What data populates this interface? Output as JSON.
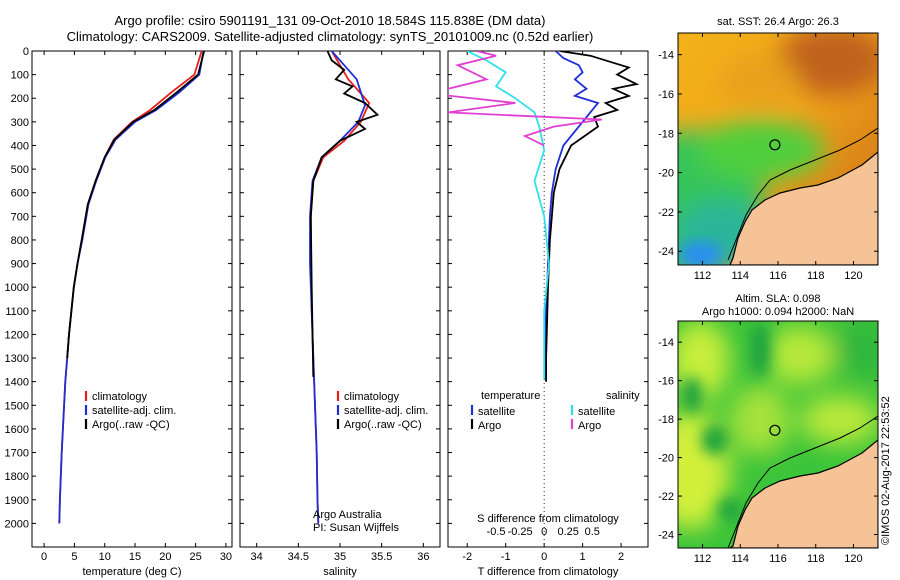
{
  "title": {
    "line1": "Argo profile: csiro 5901191_131 09-Oct-2010 18.584S 115.838E (DM data)",
    "line2": "Climatology: CARS2009. Satellite-adjusted climatology: synTS_20101009.nc (0.52d earlier)"
  },
  "colors": {
    "climatology": "#e8201a",
    "satellite": "#1f2fd6",
    "argo": "#000000",
    "argo_salinity": "#e040d0",
    "sat_salinity": "#30e0e8",
    "land": "#f5c396"
  },
  "chart_data": [
    {
      "type": "line",
      "panel": "temperature",
      "xlabel": "temperature (deg C)",
      "ylabel": "",
      "xlim": [
        -2,
        31
      ],
      "ylim": [
        2100,
        0
      ],
      "xticks": [
        0,
        5,
        10,
        15,
        20,
        25,
        30
      ],
      "yticks": [
        0,
        100,
        200,
        300,
        400,
        500,
        600,
        700,
        800,
        900,
        1000,
        1100,
        1200,
        1300,
        1400,
        1500,
        1600,
        1700,
        1800,
        1900,
        2000
      ],
      "legend": [
        "climatology",
        "satellite-adj. clim.",
        "Argo(..raw -QC)"
      ],
      "series": [
        {
          "name": "climatology",
          "color": "#e8201a",
          "x": [
            26.0,
            24.8,
            21.0,
            17.5,
            14.5,
            11.5,
            10.0,
            8.5,
            7.2,
            6.2,
            5.5,
            4.9,
            4.5,
            4.1,
            3.8,
            3.5,
            3.3,
            3.1,
            2.9,
            2.75,
            2.6,
            2.5
          ],
          "y": [
            0,
            100,
            175,
            250,
            300,
            375,
            450,
            550,
            650,
            800,
            900,
            1000,
            1100,
            1200,
            1300,
            1400,
            1500,
            1600,
            1700,
            1800,
            1900,
            2000
          ]
        },
        {
          "name": "satellite-adj. clim.",
          "color": "#1f2fd6",
          "x": [
            26.3,
            25.6,
            22.3,
            18.5,
            15.0,
            11.8,
            10.1,
            8.6,
            7.3,
            6.3,
            5.5,
            4.9,
            4.5,
            4.1,
            3.8,
            3.5,
            3.3,
            3.1,
            2.9,
            2.75,
            2.6,
            2.5
          ],
          "y": [
            0,
            100,
            175,
            250,
            300,
            375,
            450,
            550,
            650,
            800,
            900,
            1000,
            1100,
            1200,
            1300,
            1400,
            1500,
            1600,
            1700,
            1800,
            1900,
            2000
          ]
        },
        {
          "name": "Argo(..raw -QC)",
          "color": "#000000",
          "x": [
            26.4,
            25.4,
            21.9,
            18.2,
            14.7,
            11.6,
            10.0,
            8.5,
            7.2,
            6.2,
            5.5,
            4.9,
            4.5,
            4.1,
            3.8
          ],
          "y": [
            0,
            100,
            175,
            250,
            300,
            375,
            450,
            550,
            650,
            800,
            900,
            1000,
            1100,
            1200,
            1300
          ]
        }
      ]
    },
    {
      "type": "line",
      "panel": "salinity",
      "xlabel": "salinity",
      "xlim": [
        33.8,
        36.2
      ],
      "ylim": [
        2100,
        0
      ],
      "xticks": [
        34,
        34.5,
        35,
        35.5,
        36
      ],
      "legend": [
        "climatology",
        "satellite-adj. clim.",
        "Argo(..raw -QC)"
      ],
      "series": [
        {
          "name": "climatology",
          "color": "#e8201a",
          "x": [
            34.9,
            35.0,
            35.1,
            35.35,
            35.25,
            35.05,
            34.8,
            34.68,
            34.65,
            34.65,
            34.66,
            34.68,
            34.7,
            34.72,
            34.73,
            34.74
          ],
          "y": [
            0,
            60,
            120,
            220,
            300,
            380,
            450,
            550,
            700,
            900,
            1100,
            1300,
            1500,
            1700,
            1900,
            2000
          ]
        },
        {
          "name": "satellite-adj. clim.",
          "color": "#1f2fd6",
          "x": [
            34.9,
            35.05,
            35.2,
            35.3,
            35.22,
            35.0,
            34.78,
            34.67,
            34.64,
            34.64,
            34.66,
            34.68,
            34.7,
            34.72,
            34.73,
            34.74
          ],
          "y": [
            0,
            60,
            120,
            230,
            300,
            380,
            450,
            550,
            700,
            900,
            1100,
            1300,
            1500,
            1700,
            1900,
            2000
          ]
        },
        {
          "name": "Argo(..raw -QC)",
          "color": "#000000",
          "x": [
            34.85,
            34.9,
            35.05,
            34.95,
            35.15,
            35.05,
            35.3,
            35.45,
            35.2,
            35.3,
            35.0,
            34.78,
            34.68,
            34.65,
            34.66,
            34.68
          ],
          "y": [
            0,
            40,
            80,
            120,
            150,
            180,
            220,
            270,
            300,
            330,
            380,
            450,
            550,
            700,
            1000,
            1380
          ]
        }
      ]
    },
    {
      "type": "line",
      "panel": "difference",
      "xlabel": "T difference from climatology",
      "xlabel_top": "S difference from climatology",
      "xlim": [
        -2.5,
        2.7
      ],
      "ylim": [
        2100,
        0
      ],
      "xticks": [
        -2,
        -1,
        0,
        1,
        2
      ],
      "xticks_top": [
        -0.5,
        -0.25,
        0,
        0.25,
        0.5
      ],
      "legend_temperature_title": "temperature",
      "legend_salinity_title": "salinity",
      "legend": [
        "satellite",
        "Argo",
        "satellite",
        "Argo"
      ],
      "series": [
        {
          "name": "satellite",
          "group": "temperature",
          "color": "#1f2fd6",
          "x": [
            0.3,
            0.5,
            0.9,
            1.0,
            0.8,
            1.1,
            0.8,
            1.4,
            1.0,
            0.5,
            0.3,
            0.2,
            0.15,
            0.1,
            0.05,
            0.02,
            0.02
          ],
          "y": [
            0,
            30,
            60,
            90,
            120,
            160,
            190,
            220,
            300,
            400,
            500,
            600,
            700,
            900,
            1100,
            1300,
            1390
          ]
        },
        {
          "name": "Argo",
          "group": "temperature",
          "color": "#000000",
          "x": [
            0.4,
            1.2,
            1.8,
            2.2,
            1.9,
            2.4,
            1.8,
            2.2,
            1.6,
            1.9,
            1.3,
            1.4,
            0.7,
            0.4,
            0.25,
            0.15,
            0.1,
            0.05,
            0.05
          ],
          "y": [
            0,
            20,
            50,
            70,
            100,
            140,
            160,
            190,
            220,
            250,
            280,
            320,
            400,
            500,
            600,
            800,
            1000,
            1300,
            1400
          ]
        },
        {
          "name": "satellite",
          "group": "salinity",
          "color": "#30e0e8",
          "x": [
            -0.8,
            -0.6,
            -0.4,
            -0.5,
            -0.3,
            -0.1,
            -0.05,
            0.0,
            -0.1,
            0.0,
            0.05,
            0.0,
            0.0,
            0.0
          ],
          "y": [
            0,
            40,
            90,
            150,
            200,
            260,
            320,
            420,
            550,
            700,
            900,
            1100,
            1300,
            1390
          ]
        },
        {
          "name": "Argo",
          "group": "salinity",
          "color": "#e040d0",
          "x": [
            -0.7,
            -0.5,
            -0.9,
            -0.6,
            -1.2,
            -0.3,
            -1.0,
            0.6,
            0.1,
            -0.2,
            0.0
          ],
          "y": [
            0,
            20,
            60,
            120,
            180,
            220,
            260,
            290,
            320,
            360,
            400
          ]
        }
      ]
    },
    {
      "type": "heatmap",
      "panel": "sst_map",
      "title": "sat. SST: 26.4 Argo: 26.3",
      "xticks": [
        112,
        114,
        116,
        118,
        120
      ],
      "yticks": [
        -14,
        -16,
        -18,
        -20,
        -22,
        -24
      ],
      "xlim": [
        110.7,
        121.3
      ],
      "ylim": [
        -24.7,
        -12.9
      ],
      "argo_location": [
        115.838,
        -18.584
      ]
    },
    {
      "type": "heatmap",
      "panel": "sla_map",
      "title": "Altim. SLA: 0.098",
      "subtitle": "Argo h1000: 0.094 h2000: NaN",
      "xticks": [
        112,
        114,
        116,
        118,
        120
      ],
      "yticks": [
        -14,
        -16,
        -18,
        -20,
        -22,
        -24
      ],
      "xlim": [
        110.7,
        121.3
      ],
      "ylim": [
        -24.7,
        -12.9
      ],
      "argo_location": [
        115.838,
        -18.584
      ]
    }
  ],
  "credit": "©IMOS 02-Aug-2017 22:53:52",
  "notes": {
    "line1": "Argo Australia",
    "line2": "PI: Susan Wijffels"
  }
}
